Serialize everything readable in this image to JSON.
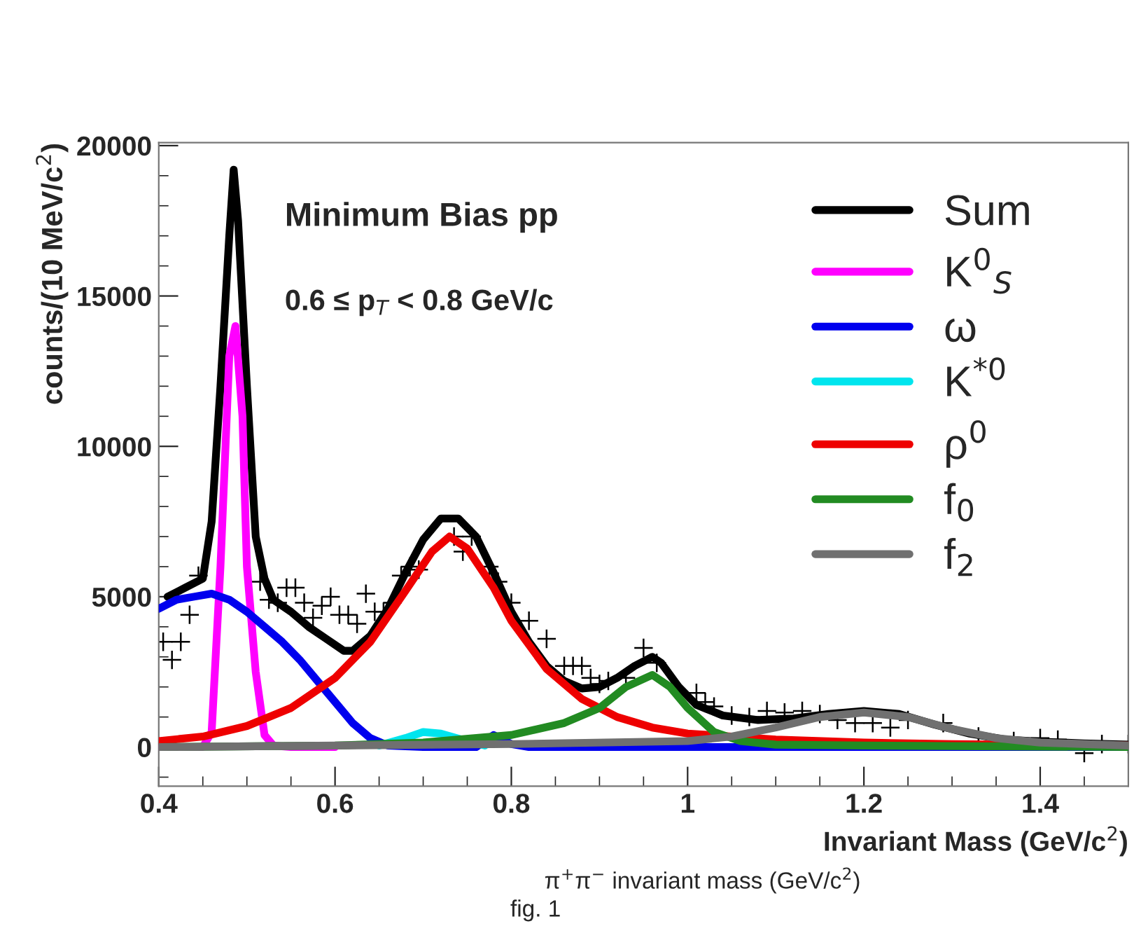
{
  "chart_data": {
    "type": "line",
    "xlabel": "Invariant Mass (GeV/c$^{2}$)",
    "ylabel": "counts/(10 MeV/c$^{2}$)",
    "xlim": [
      0.4,
      1.5
    ],
    "ylim": [
      -1300,
      20100
    ],
    "xticks": [
      0.4,
      0.6,
      0.8,
      1,
      1.2,
      1.4
    ],
    "yticks": [
      0,
      5000,
      10000,
      15000,
      20000
    ],
    "grid": false,
    "legend": "top right",
    "annotations": [
      "Minimum Bias pp",
      "0.6 ≤ p$_{T}$ < 0.8 GeV/c",
      "π$^{+}$π$^{−}$ invariant mass (GeV/c$^{2}$)",
      "fig. 1"
    ],
    "series": [
      {
        "type": "scatter",
        "marker": "cross",
        "color": "#000000",
        "x": [
          0.405,
          0.415,
          0.425,
          0.435,
          0.445,
          0.515,
          0.525,
          0.535,
          0.545,
          0.555,
          0.565,
          0.575,
          0.585,
          0.595,
          0.605,
          0.615,
          0.625,
          0.635,
          0.645,
          0.655,
          0.665,
          0.675,
          0.685,
          0.695,
          0.735,
          0.745,
          0.755,
          0.775,
          0.785,
          0.8,
          0.82,
          0.84,
          0.86,
          0.87,
          0.88,
          0.89,
          0.9,
          0.91,
          0.93,
          0.95,
          0.965,
          1.01,
          1.02,
          1.03,
          1.05,
          1.07,
          1.09,
          1.11,
          1.13,
          1.15,
          1.17,
          1.19,
          1.21,
          1.23,
          1.25,
          1.29,
          1.33,
          1.37,
          1.4,
          1.42,
          1.45,
          1.47,
          1.5
        ],
        "values": [
          3500,
          2900,
          3500,
          4400,
          5700,
          5500,
          4900,
          4800,
          5300,
          5300,
          4800,
          4300,
          4700,
          5000,
          4400,
          4400,
          4100,
          5100,
          4500,
          4500,
          4800,
          5700,
          6000,
          5900,
          7000,
          6500,
          7000,
          6000,
          5500,
          4800,
          4200,
          3600,
          2700,
          2700,
          2700,
          2300,
          2100,
          2200,
          2300,
          3300,
          2800,
          1800,
          1500,
          1350,
          1050,
          1000,
          1200,
          1150,
          1200,
          1100,
          900,
          800,
          800,
          650,
          900,
          800,
          350,
          200,
          300,
          250,
          -200,
          100,
          100
        ]
      },
      {
        "name": "Sum",
        "color": "#000000",
        "x": [
          0.41,
          0.43,
          0.45,
          0.46,
          0.47,
          0.48,
          0.485,
          0.49,
          0.5,
          0.51,
          0.52,
          0.53,
          0.55,
          0.57,
          0.59,
          0.61,
          0.62,
          0.64,
          0.66,
          0.68,
          0.7,
          0.72,
          0.74,
          0.76,
          0.78,
          0.8,
          0.82,
          0.84,
          0.86,
          0.88,
          0.9,
          0.92,
          0.94,
          0.96,
          0.97,
          0.99,
          1.01,
          1.04,
          1.08,
          1.12,
          1.16,
          1.2,
          1.24,
          1.28,
          1.32,
          1.36,
          1.4,
          1.45,
          1.5
        ],
        "values": [
          5000,
          5300,
          5600,
          7500,
          12000,
          17000,
          19200,
          17500,
          12000,
          7000,
          5600,
          4900,
          4500,
          4000,
          3600,
          3200,
          3200,
          3700,
          4600,
          5800,
          6900,
          7600,
          7600,
          7000,
          5800,
          4500,
          3500,
          2700,
          2200,
          1950,
          2000,
          2300,
          2700,
          3000,
          2800,
          2000,
          1400,
          1050,
          900,
          950,
          1100,
          1200,
          1100,
          750,
          450,
          250,
          180,
          120,
          80
        ]
      },
      {
        "name": "K$^{0}$$_{S}$",
        "color": "#ff00ff",
        "x": [
          0.4,
          0.45,
          0.46,
          0.47,
          0.48,
          0.487,
          0.495,
          0.5,
          0.51,
          0.52,
          0.53,
          0.55,
          0.6
        ],
        "values": [
          0,
          0,
          500,
          6000,
          13000,
          14000,
          11000,
          6000,
          2500,
          400,
          50,
          0,
          0
        ]
      },
      {
        "name": "ω",
        "color": "#0000ee",
        "x": [
          0.4,
          0.42,
          0.44,
          0.46,
          0.48,
          0.5,
          0.52,
          0.54,
          0.56,
          0.58,
          0.6,
          0.62,
          0.64,
          0.66,
          0.7,
          0.76,
          0.78,
          0.8,
          0.82,
          1.0,
          1.5
        ],
        "values": [
          4600,
          4900,
          5000,
          5100,
          4900,
          4500,
          4000,
          3500,
          2900,
          2200,
          1500,
          800,
          300,
          50,
          0,
          0,
          400,
          100,
          0,
          0,
          0
        ]
      },
      {
        "name": "K$^{*0}$",
        "color": "#00e5ee",
        "x": [
          0.65,
          0.68,
          0.7,
          0.72,
          0.75,
          0.77
        ],
        "values": [
          50,
          300,
          500,
          450,
          200,
          50
        ]
      },
      {
        "name": "ρ$^{0}$",
        "color": "#ee0000",
        "x": [
          0.4,
          0.45,
          0.5,
          0.55,
          0.6,
          0.64,
          0.68,
          0.71,
          0.73,
          0.75,
          0.78,
          0.8,
          0.84,
          0.88,
          0.92,
          0.96,
          1.0,
          1.1,
          1.2,
          1.3,
          1.5
        ],
        "values": [
          200,
          350,
          700,
          1300,
          2300,
          3500,
          5200,
          6500,
          7000,
          6600,
          5300,
          4200,
          2600,
          1600,
          1000,
          650,
          450,
          250,
          150,
          100,
          50
        ]
      },
      {
        "name": "f$_{0}$",
        "color": "#228b22",
        "x": [
          0.4,
          0.6,
          0.7,
          0.8,
          0.86,
          0.9,
          0.93,
          0.96,
          0.98,
          1.0,
          1.03,
          1.06,
          1.1,
          1.2,
          1.5
        ],
        "values": [
          0,
          50,
          150,
          400,
          800,
          1300,
          2000,
          2400,
          2000,
          1300,
          500,
          200,
          80,
          50,
          0
        ]
      },
      {
        "name": "f$_{2}$",
        "color": "#707070",
        "x": [
          0.4,
          0.8,
          1.0,
          1.05,
          1.1,
          1.15,
          1.2,
          1.25,
          1.3,
          1.35,
          1.4,
          1.5
        ],
        "values": [
          0,
          100,
          200,
          350,
          650,
          1000,
          1150,
          1000,
          600,
          300,
          150,
          50
        ]
      }
    ]
  }
}
